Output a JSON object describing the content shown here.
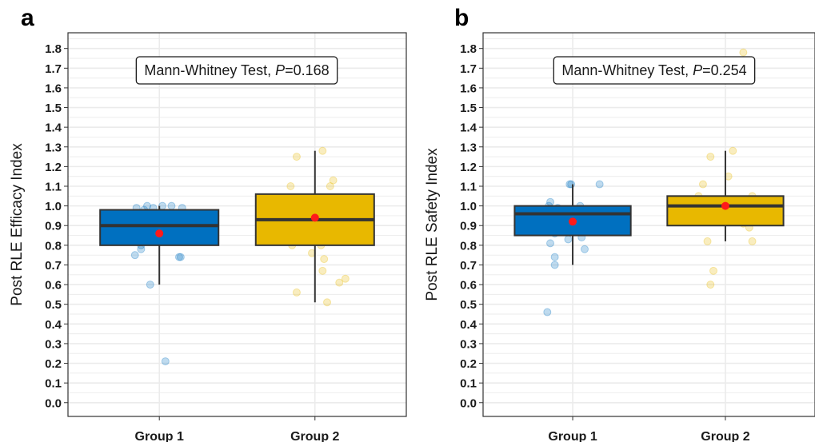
{
  "chart_data": [
    {
      "panel": "a",
      "type": "box",
      "ylabel": "Post RLE Efficacy Index",
      "xlabel": "",
      "categories": [
        "Group 1",
        "Group 2"
      ],
      "ylim": [
        -0.07,
        1.88
      ],
      "yticks": [
        "0.0",
        "0.1",
        "0.2",
        "0.3",
        "0.4",
        "0.5",
        "0.6",
        "0.7",
        "0.8",
        "0.9",
        "1.0",
        "1.1",
        "1.2",
        "1.3",
        "1.4",
        "1.5",
        "1.6",
        "1.7",
        "1.8"
      ],
      "annotation": {
        "prefix": "Mann-Whitney Test, ",
        "italic": "P",
        "suffix": "=0.168"
      },
      "grid": true,
      "colors": [
        "#0070c0",
        "#e8b800"
      ],
      "boxes": [
        {
          "q1": 0.8,
          "median": 0.9,
          "q3": 0.98,
          "whisker_low": 0.6,
          "whisker_high": 1.0,
          "mean": 0.86
        },
        {
          "q1": 0.8,
          "median": 0.93,
          "q3": 1.06,
          "whisker_low": 0.51,
          "whisker_high": 1.28,
          "mean": 0.94
        }
      ],
      "points": [
        [
          [
            -0.08,
            1.0
          ],
          [
            -0.04,
            0.99
          ],
          [
            0.02,
            1.0
          ],
          [
            0.08,
            1.0
          ],
          [
            0.15,
            0.99
          ],
          [
            -0.15,
            0.99
          ],
          [
            -0.1,
            0.98
          ],
          [
            0.05,
            0.96
          ],
          [
            0.0,
            0.92
          ],
          [
            -0.05,
            0.88
          ],
          [
            0.1,
            0.85
          ],
          [
            -0.12,
            0.8
          ],
          [
            -0.12,
            0.78
          ],
          [
            -0.16,
            0.75
          ],
          [
            0.13,
            0.74
          ],
          [
            0.14,
            0.74
          ],
          [
            -0.06,
            0.6
          ],
          [
            0.04,
            0.21
          ]
        ],
        [
          [
            0.05,
            1.28
          ],
          [
            -0.12,
            1.25
          ],
          [
            0.12,
            1.13
          ],
          [
            -0.16,
            1.1
          ],
          [
            0.1,
            1.1
          ],
          [
            0.15,
            1.01
          ],
          [
            -0.05,
            0.97
          ],
          [
            0.03,
            0.94
          ],
          [
            -0.1,
            0.9
          ],
          [
            0.08,
            0.85
          ],
          [
            -0.15,
            0.8
          ],
          [
            0.04,
            0.8
          ],
          [
            -0.02,
            0.76
          ],
          [
            0.06,
            0.73
          ],
          [
            0.05,
            0.67
          ],
          [
            0.2,
            0.63
          ],
          [
            0.16,
            0.61
          ],
          [
            -0.12,
            0.56
          ],
          [
            0.08,
            0.51
          ]
        ]
      ]
    },
    {
      "panel": "b",
      "type": "box",
      "ylabel": "Post RLE Safety Index",
      "xlabel": "",
      "categories": [
        "Group 1",
        "Group 2"
      ],
      "ylim": [
        -0.07,
        1.88
      ],
      "yticks": [
        "0.0",
        "0.1",
        "0.2",
        "0.3",
        "0.4",
        "0.5",
        "0.6",
        "0.7",
        "0.8",
        "0.9",
        "1.0",
        "1.1",
        "1.2",
        "1.3",
        "1.4",
        "1.5",
        "1.6",
        "1.7",
        "1.8"
      ],
      "annotation": {
        "prefix": "Mann-Whitney Test, ",
        "italic": "P",
        "suffix": "=0.254"
      },
      "grid": true,
      "colors": [
        "#0070c0",
        "#e8b800"
      ],
      "boxes": [
        {
          "q1": 0.85,
          "median": 0.96,
          "q3": 1.0,
          "whisker_low": 0.7,
          "whisker_high": 1.11,
          "mean": 0.92
        },
        {
          "q1": 0.9,
          "median": 1.0,
          "q3": 1.05,
          "whisker_low": 0.82,
          "whisker_high": 1.28,
          "mean": 1.0
        }
      ],
      "points": [
        [
          [
            -0.01,
            1.11
          ],
          [
            -0.02,
            1.11
          ],
          [
            0.18,
            1.11
          ],
          [
            -0.15,
            1.02
          ],
          [
            -0.16,
            1.0
          ],
          [
            0.05,
            1.0
          ],
          [
            -0.1,
            0.99
          ],
          [
            0.1,
            0.98
          ],
          [
            -0.05,
            0.95
          ],
          [
            0.08,
            0.9
          ],
          [
            -0.12,
            0.86
          ],
          [
            0.06,
            0.84
          ],
          [
            -0.03,
            0.83
          ],
          [
            -0.15,
            0.81
          ],
          [
            0.08,
            0.78
          ],
          [
            -0.12,
            0.74
          ],
          [
            -0.12,
            0.7
          ],
          [
            -0.17,
            0.46
          ]
        ],
        [
          [
            0.12,
            1.78
          ],
          [
            0.05,
            1.28
          ],
          [
            -0.1,
            1.25
          ],
          [
            0.02,
            1.15
          ],
          [
            -0.15,
            1.11
          ],
          [
            -0.18,
            1.05
          ],
          [
            0.18,
            1.05
          ],
          [
            0.2,
            1.0
          ],
          [
            -0.05,
            0.99
          ],
          [
            0.1,
            0.97
          ],
          [
            0.15,
            0.95
          ],
          [
            -0.1,
            0.93
          ],
          [
            0.12,
            0.91
          ],
          [
            0.16,
            0.89
          ],
          [
            -0.12,
            0.82
          ],
          [
            0.18,
            0.82
          ],
          [
            -0.08,
            0.67
          ],
          [
            -0.1,
            0.6
          ]
        ]
      ]
    }
  ]
}
